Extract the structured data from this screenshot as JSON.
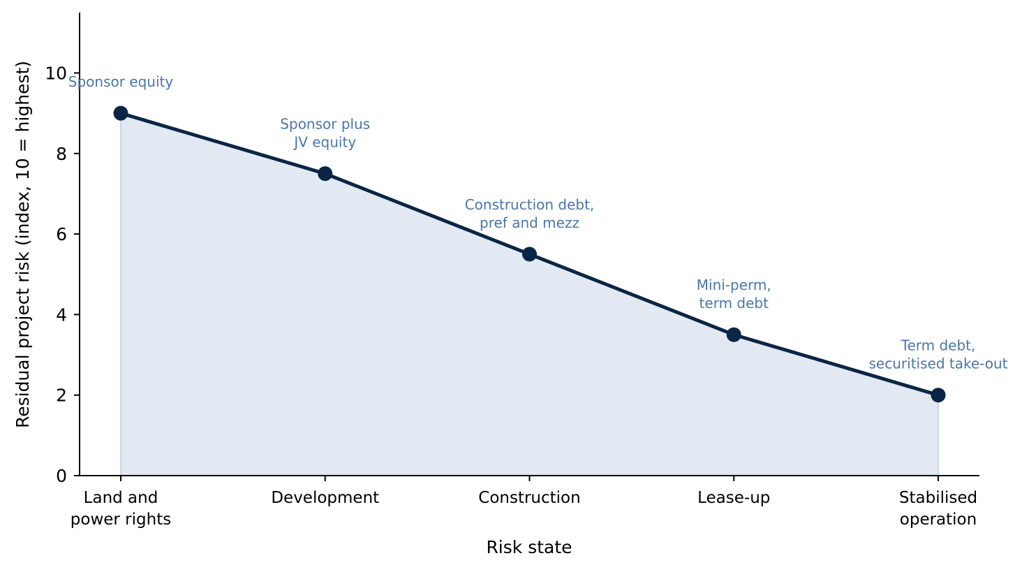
{
  "chart_data": {
    "type": "area",
    "title": "",
    "xlabel": "Risk state",
    "ylabel": "Residual project risk (index, 10 = highest)",
    "categories": [
      [
        "Land and",
        "power rights"
      ],
      [
        "Development"
      ],
      [
        "Construction"
      ],
      [
        "Lease-up"
      ],
      [
        "Stabilised",
        "operation"
      ]
    ],
    "values": [
      9,
      7.5,
      5.5,
      3.5,
      2
    ],
    "annotations": [
      [
        "Sponsor equity"
      ],
      [
        "Sponsor plus",
        "JV equity"
      ],
      [
        "Construction debt,",
        "pref and mezz"
      ],
      [
        "Mini-perm,",
        "term debt"
      ],
      [
        "Term debt,",
        "securitised take-out"
      ]
    ],
    "ylim": [
      0,
      11.5
    ],
    "yticks": [
      0,
      2,
      4,
      6,
      8,
      10
    ],
    "grid": false,
    "legend": "none",
    "colors": {
      "line": "#0b2545",
      "fill": "#e2e9f2",
      "fill_edge": "#c9d5e6",
      "annotation": "#4a76a8",
      "axis": "#000000"
    }
  }
}
